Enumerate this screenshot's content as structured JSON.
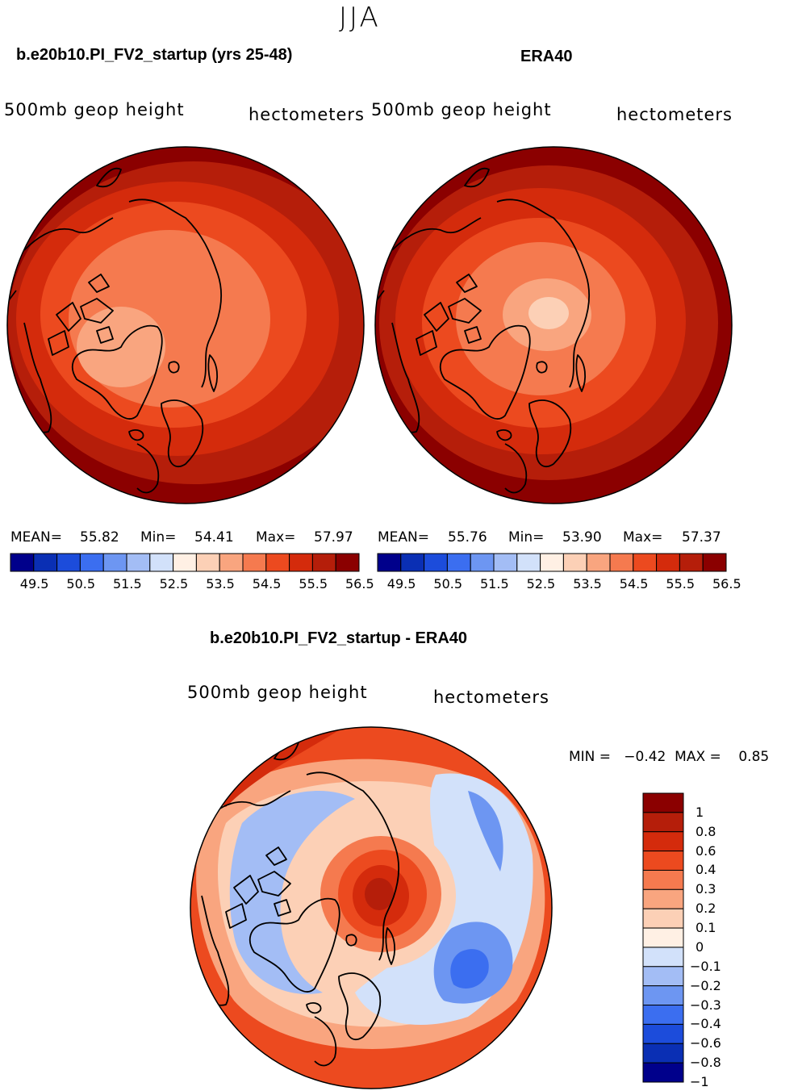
{
  "suptitle": "JJA",
  "colors": {
    "seq": [
      "#00008b",
      "#0a2fb4",
      "#1c4cdb",
      "#3b6ef0",
      "#6d96f2",
      "#a3bdf5",
      "#d2e1fa",
      "#fff0e4",
      "#fcd0b6",
      "#f9a57f",
      "#f57a4f",
      "#ec4a1f",
      "#d42b0c",
      "#b51e0a",
      "#8b0000"
    ],
    "diff": [
      "#00008b",
      "#0a2fb4",
      "#1c4cdb",
      "#3b6ef0",
      "#6d96f2",
      "#a3bdf5",
      "#d2e1fa",
      "#fff0e4",
      "#fcd0b6",
      "#f9a57f",
      "#f57a4f",
      "#ec4a1f",
      "#d42b0c",
      "#b51e0a",
      "#8b0000"
    ]
  },
  "panels": [
    {
      "title": "b.e20b10.PI_FV2_startup (yrs 25-48)",
      "left_label": "500mb  geop  height",
      "right_label": "hectometers",
      "mean_label": "MEAN=",
      "mean": "55.82",
      "min_label": "Min=",
      "min": "54.41",
      "max_label": "Max=",
      "max": "57.97"
    },
    {
      "title": "ERA40",
      "left_label": "500mb  geop  height",
      "right_label": "hectometers",
      "mean_label": "MEAN=",
      "mean": "55.76",
      "min_label": "Min=",
      "min": "53.90",
      "max_label": "Max=",
      "max": "57.37"
    }
  ],
  "seq_ticks": [
    "49.5",
    "50.5",
    "51.5",
    "52.5",
    "53.5",
    "54.5",
    "55.5",
    "56.5"
  ],
  "diff_panel": {
    "title": "b.e20b10.PI_FV2_startup - ERA40",
    "left_label": "500mb  geop  height",
    "right_label": "hectometers",
    "minmax": "MIN =   −0.42  MAX =    0.85"
  },
  "diff_ticks": [
    "1",
    "0.8",
    "0.6",
    "0.4",
    "0.3",
    "0.2",
    "0.1",
    "0",
    "−0.1",
    "−0.2",
    "−0.3",
    "−0.4",
    "−0.6",
    "−0.8",
    "−1"
  ]
}
